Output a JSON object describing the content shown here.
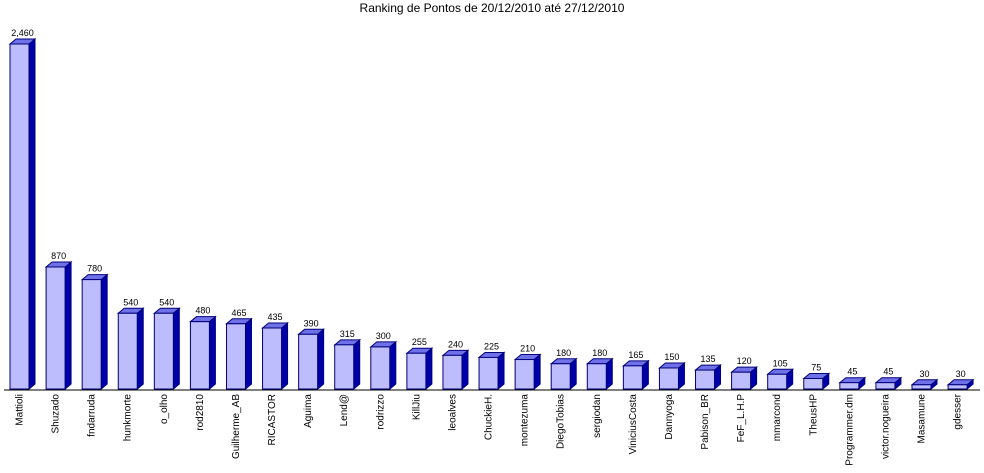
{
  "chart_data": {
    "type": "bar",
    "title": "Ranking de Pontos de 20/12/2010 até 27/12/2010",
    "categories": [
      "Mattioli",
      "Shuzado",
      "fndarruda",
      "hunkmorte",
      "o_olho",
      "rod2810",
      "Guilherme_AB",
      "RICASTOR",
      "Aguima",
      "Lend@",
      "rodrizzo",
      "KillJiu",
      "leoalves",
      "ChuckieH.",
      "montezuma",
      "DiegoTobias",
      "sergiodan",
      "ViniciusCosta",
      "Dannyoga",
      "Pabison_BR",
      "FeF_L.H.P",
      "mmarcond",
      "TheusHP",
      "Programmer.dm",
      "victor.nogueira",
      "Masamune",
      "gdesser"
    ],
    "values": [
      2460,
      870,
      780,
      540,
      540,
      480,
      465,
      435,
      390,
      315,
      300,
      255,
      240,
      225,
      210,
      180,
      180,
      165,
      150,
      135,
      120,
      105,
      75,
      45,
      45,
      30,
      30
    ],
    "value_labels": [
      "2,460",
      "870",
      "780",
      "540",
      "540",
      "480",
      "465",
      "435",
      "390",
      "315",
      "300",
      "255",
      "240",
      "225",
      "210",
      "180",
      "180",
      "165",
      "150",
      "135",
      "120",
      "105",
      "75",
      "45",
      "45",
      "30",
      "30"
    ],
    "ylim": [
      0,
      2460
    ],
    "xlabel": "",
    "ylabel": "",
    "grid": false,
    "legend": "none",
    "colors": {
      "bar_front": "#BDBDFE",
      "bar_top": "#7070E8",
      "bar_side": "#0000A8",
      "bar_outline": "#00007A",
      "axis": "#000000"
    }
  }
}
